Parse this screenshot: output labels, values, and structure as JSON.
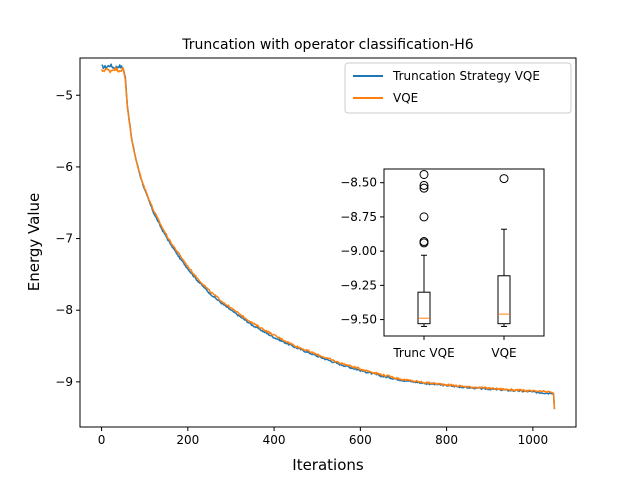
{
  "chart_data": [
    {
      "type": "line",
      "title": "Truncation with operator classification-H6",
      "xlabel": "Iterations",
      "ylabel": "Energy Value",
      "xlim": [
        -50,
        1100
      ],
      "ylim": [
        -9.63,
        -4.48
      ],
      "xticks": [
        0,
        200,
        400,
        600,
        800,
        1000
      ],
      "yticks": [
        -5,
        -6,
        -7,
        -8,
        -9
      ],
      "xtick_labels": [
        "0",
        "200",
        "400",
        "600",
        "800",
        "1000"
      ],
      "ytick_labels": [
        "−5",
        "−6",
        "−7",
        "−8",
        "−9"
      ],
      "grid": false,
      "legend": "top-right",
      "series": [
        {
          "name": "Truncation Strategy VQE",
          "color": "#1f77b4",
          "x": [
            0,
            10,
            20,
            30,
            40,
            50,
            55,
            60,
            70,
            80,
            90,
            100,
            120,
            140,
            160,
            180,
            200,
            220,
            250,
            280,
            300,
            350,
            400,
            450,
            500,
            550,
            600,
            650,
            700,
            750,
            800,
            850,
            900,
            950,
            1000,
            1040,
            1048,
            1050
          ],
          "y": [
            -4.6,
            -4.61,
            -4.58,
            -4.62,
            -4.59,
            -4.62,
            -4.75,
            -5.15,
            -5.62,
            -5.9,
            -6.13,
            -6.32,
            -6.63,
            -6.87,
            -7.08,
            -7.26,
            -7.42,
            -7.57,
            -7.76,
            -7.91,
            -8.0,
            -8.21,
            -8.38,
            -8.52,
            -8.64,
            -8.75,
            -8.84,
            -8.92,
            -8.98,
            -9.02,
            -9.05,
            -9.08,
            -9.1,
            -9.12,
            -9.14,
            -9.16,
            -9.17,
            -9.38
          ]
        },
        {
          "name": "VQE",
          "color": "#ff7f0e",
          "x": [
            0,
            10,
            20,
            30,
            40,
            50,
            55,
            60,
            70,
            80,
            90,
            100,
            120,
            140,
            160,
            180,
            200,
            220,
            250,
            280,
            300,
            350,
            400,
            450,
            500,
            550,
            600,
            650,
            700,
            750,
            800,
            850,
            900,
            950,
            1000,
            1040,
            1048,
            1050
          ],
          "y": [
            -4.66,
            -4.64,
            -4.66,
            -4.63,
            -4.65,
            -4.64,
            -4.78,
            -5.17,
            -5.63,
            -5.91,
            -6.12,
            -6.3,
            -6.6,
            -6.84,
            -7.05,
            -7.22,
            -7.39,
            -7.54,
            -7.73,
            -7.88,
            -7.97,
            -8.18,
            -8.35,
            -8.5,
            -8.62,
            -8.73,
            -8.82,
            -8.9,
            -8.97,
            -9.01,
            -9.04,
            -9.07,
            -9.09,
            -9.11,
            -9.13,
            -9.14,
            -9.16,
            -9.38
          ]
        }
      ]
    },
    {
      "type": "box",
      "categories": [
        "Trunc VQE",
        "VQE"
      ],
      "ylim": [
        -9.62,
        -8.4
      ],
      "yticks": [
        -8.5,
        -8.75,
        -9.0,
        -9.25,
        -9.5
      ],
      "ytick_labels": [
        "−8.50",
        "−8.75",
        "−9.00",
        "−9.25",
        "−9.50"
      ],
      "boxes": [
        {
          "name": "Trunc VQE",
          "whisker_low": -9.55,
          "q1": -9.53,
          "median": -9.49,
          "q3": -9.3,
          "whisker_high": -9.03,
          "outliers": [
            -8.44,
            -8.52,
            -8.54,
            -8.75,
            -8.93,
            -8.94
          ]
        },
        {
          "name": "VQE",
          "whisker_low": -9.55,
          "q1": -9.53,
          "median": -9.46,
          "q3": -9.18,
          "whisker_high": -8.84,
          "outliers": [
            -8.47
          ]
        }
      ],
      "box_color": "#000000",
      "median_color": "#ff7f0e"
    }
  ]
}
